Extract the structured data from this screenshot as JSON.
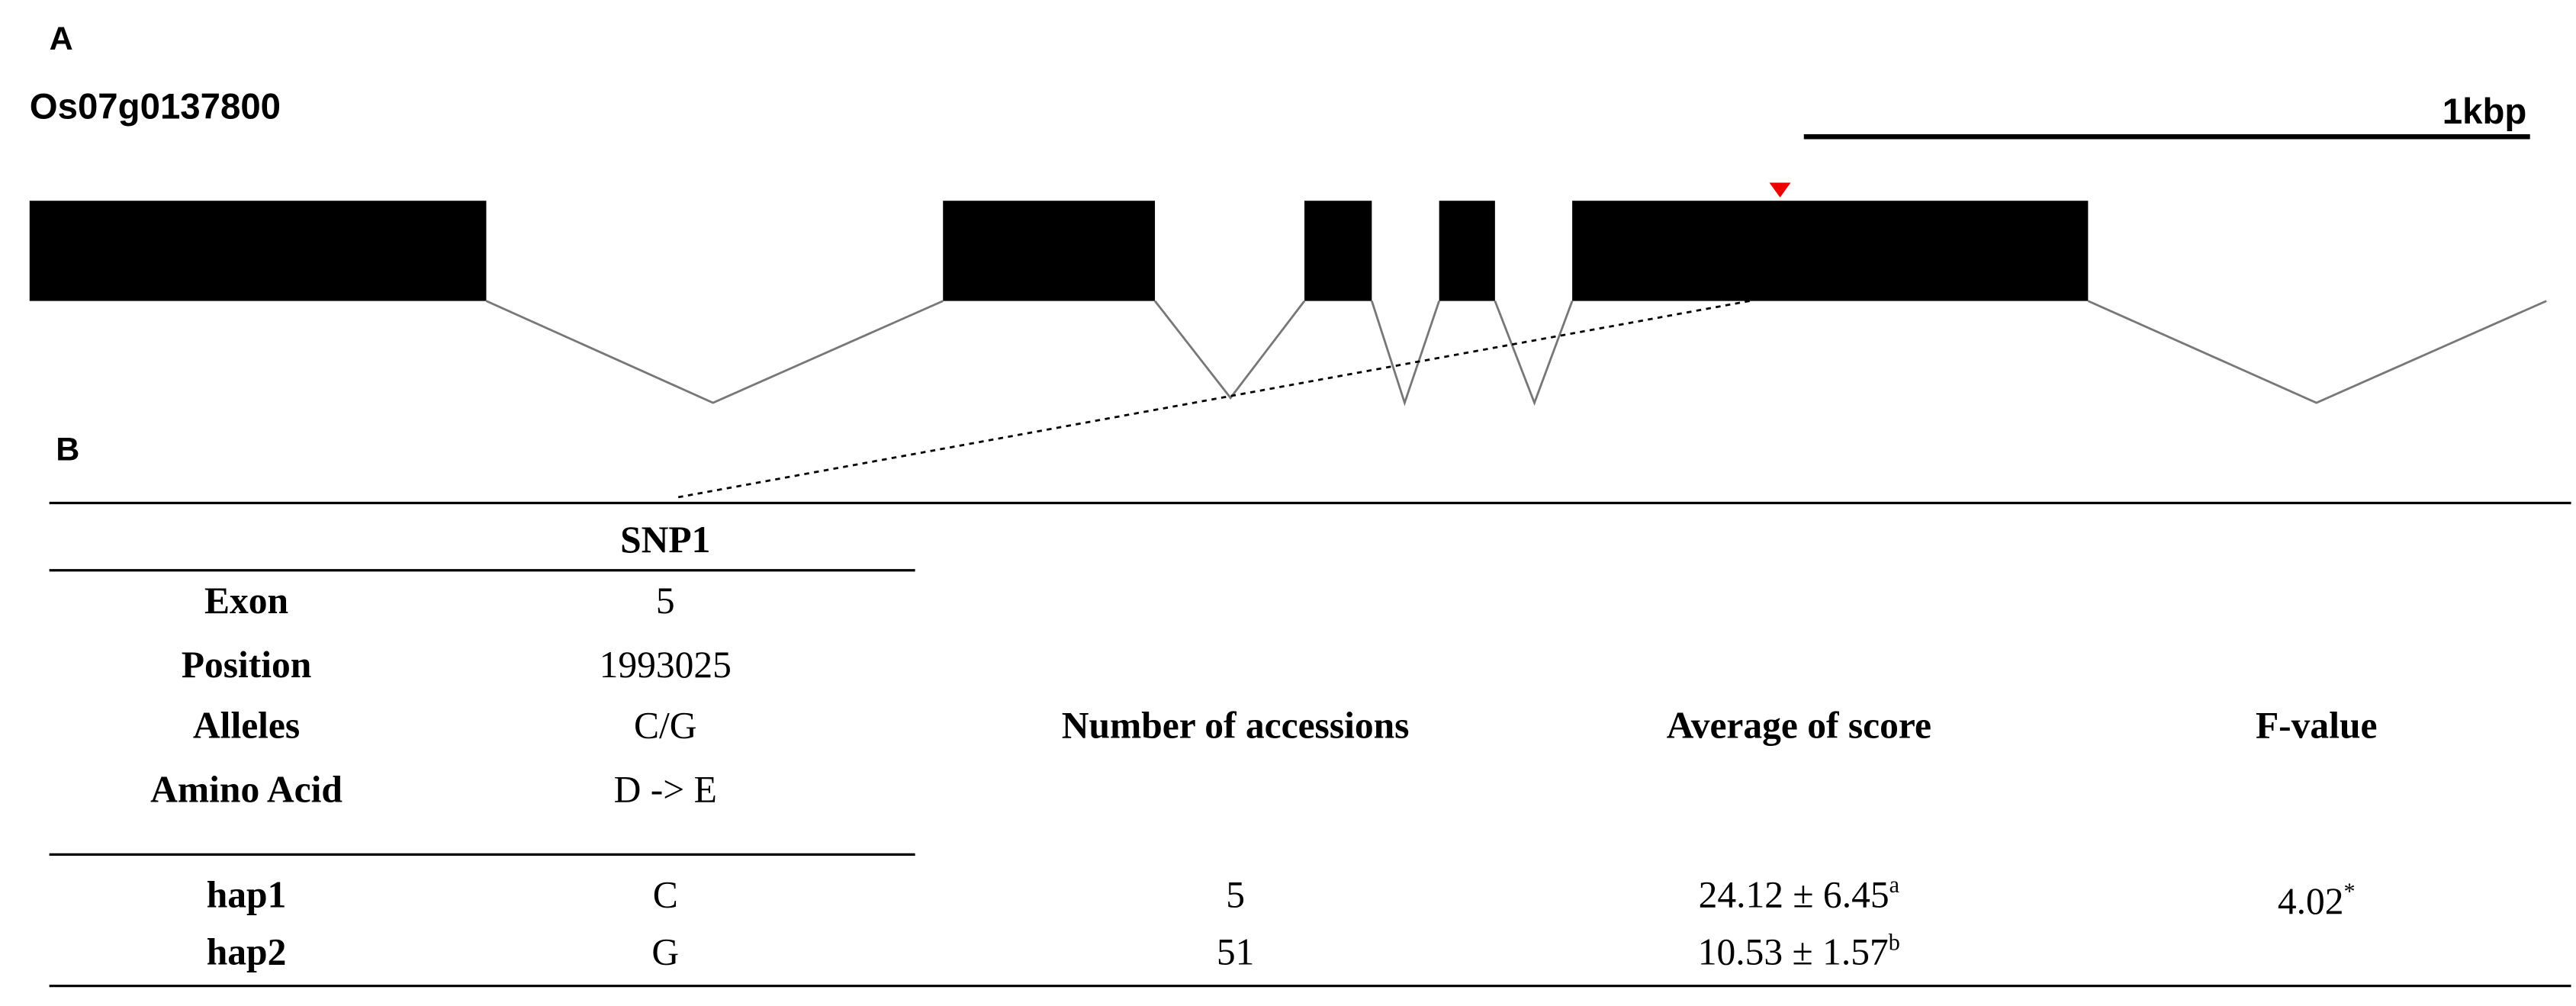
{
  "panel_a": {
    "label": "A",
    "gene": "Os07g0137800",
    "scale_label": "1kbp"
  },
  "panel_b": {
    "label": "B",
    "snp_header": "SNP1",
    "snp_info": [
      {
        "label": "Exon",
        "value": 5
      },
      {
        "label": "Position",
        "value": 1993025
      },
      {
        "label": "Alleles",
        "value": "C/G"
      },
      {
        "label": "Amino Acid",
        "value": "D -> E"
      }
    ],
    "columns": [
      "Number of accessions",
      "Average of score",
      "F-value"
    ],
    "rows": [
      {
        "name": "hap1",
        "allele": "C",
        "accessions": 5,
        "score": "24.12 ± 6.45",
        "score_sup": "a"
      },
      {
        "name": "hap2",
        "allele": "G",
        "accessions": 51,
        "score": "10.53 ± 1.57",
        "score_sup": "b"
      }
    ],
    "f_value": 4.02,
    "f_sup": "*"
  }
}
